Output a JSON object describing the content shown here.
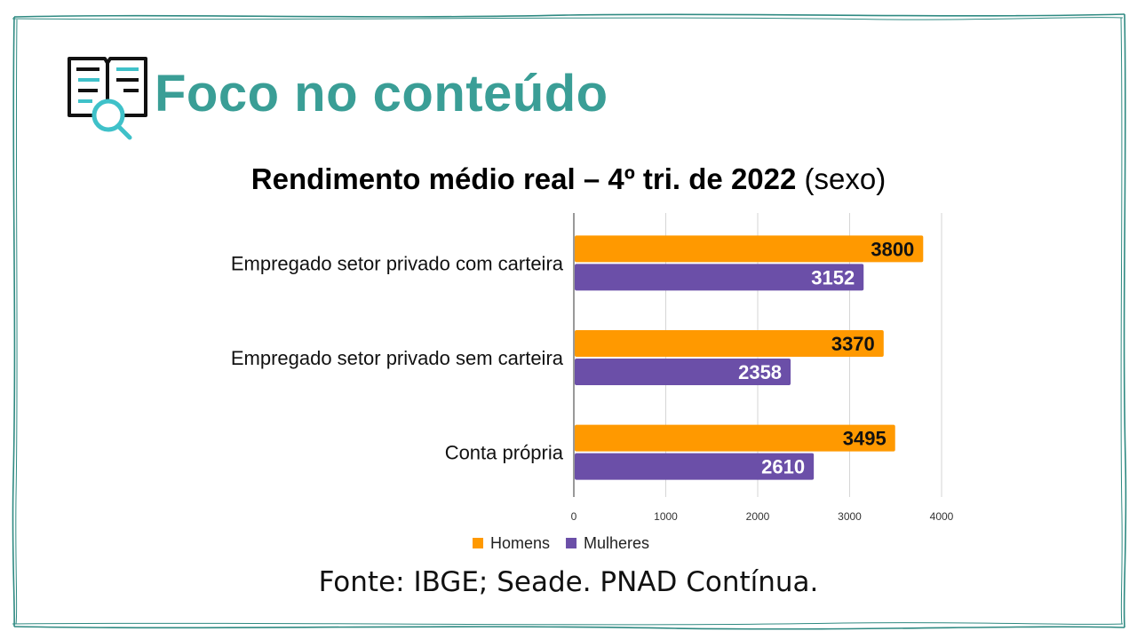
{
  "header": {
    "title": "Foco no conteúdo",
    "icon": "book-search-icon",
    "accent_color": "#3a9e96"
  },
  "chart_data": {
    "type": "bar",
    "orientation": "horizontal",
    "title": "Rendimento médio real – 4º tri. de 2022",
    "subtitle": "(sexo)",
    "categories": [
      "Empregado setor privado com carteira",
      "Empregado setor privado sem carteira",
      "Conta própria"
    ],
    "series": [
      {
        "name": "Homens",
        "values": [
          3800,
          3370,
          3495
        ],
        "color": "#ff9900",
        "label_color": "#111111"
      },
      {
        "name": "Mulheres",
        "values": [
          3152,
          2358,
          2610
        ],
        "color": "#6b4fa8",
        "label_color": "#ffffff"
      }
    ],
    "xlim": [
      0,
      4000
    ],
    "xticks": [
      "0",
      "1000",
      "2000",
      "3000",
      "4000"
    ],
    "grid": true,
    "legend_position": "bottom"
  },
  "source": "Fonte: IBGE; Seade. PNAD Contínua."
}
